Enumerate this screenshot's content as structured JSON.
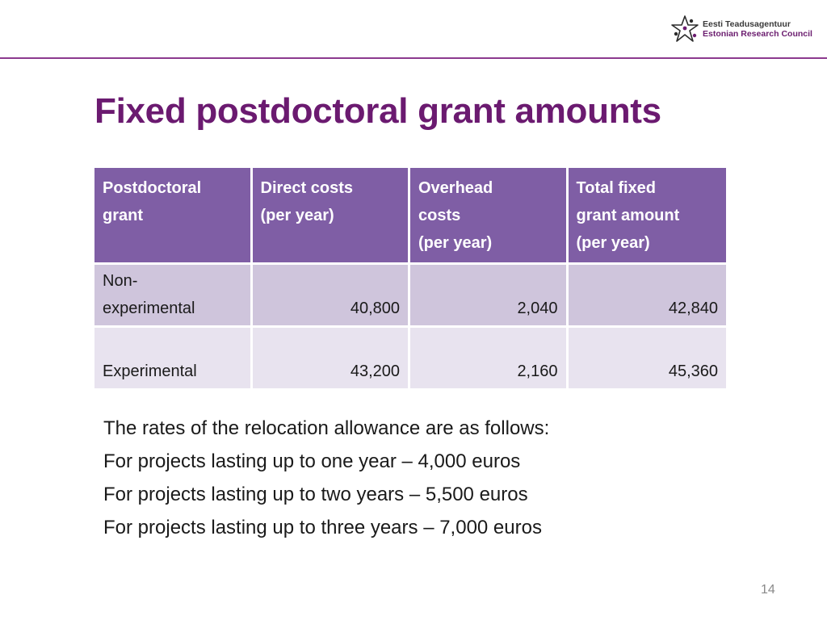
{
  "logo": {
    "name_et": "Eesti Teadusagentuur",
    "name_en": "Estonian Research Council"
  },
  "title": "Fixed postdoctoral grant amounts",
  "table": {
    "headers": [
      [
        "Postdoctoral",
        "grant"
      ],
      [
        "Direct costs",
        "(per year)"
      ],
      [
        "Overhead",
        "costs",
        "(per year)"
      ],
      [
        "Total fixed",
        "grant amount",
        "(per year)"
      ]
    ],
    "rows": [
      {
        "label_lines": [
          "Non-",
          "experimental"
        ],
        "direct": "40,800",
        "overhead": "2,040",
        "total": "42,840"
      },
      {
        "label_lines": [
          "Experimental"
        ],
        "direct": "43,200",
        "overhead": "2,160",
        "total": "45,360"
      }
    ]
  },
  "notes": [
    "The rates of the relocation allowance are as follows:",
    "For projects lasting up to one year – 4,000 euros",
    "For projects lasting up to two years – 5,500 euros",
    "For projects lasting up to three years – 7,000 euros"
  ],
  "page_number": "14",
  "colors": {
    "title": "#6b1a70",
    "header_rule": "#8c3a8f",
    "table_header_bg": "#7f5ea5",
    "row_a_bg": "#cfc5dc",
    "row_b_bg": "#e8e3ef"
  }
}
